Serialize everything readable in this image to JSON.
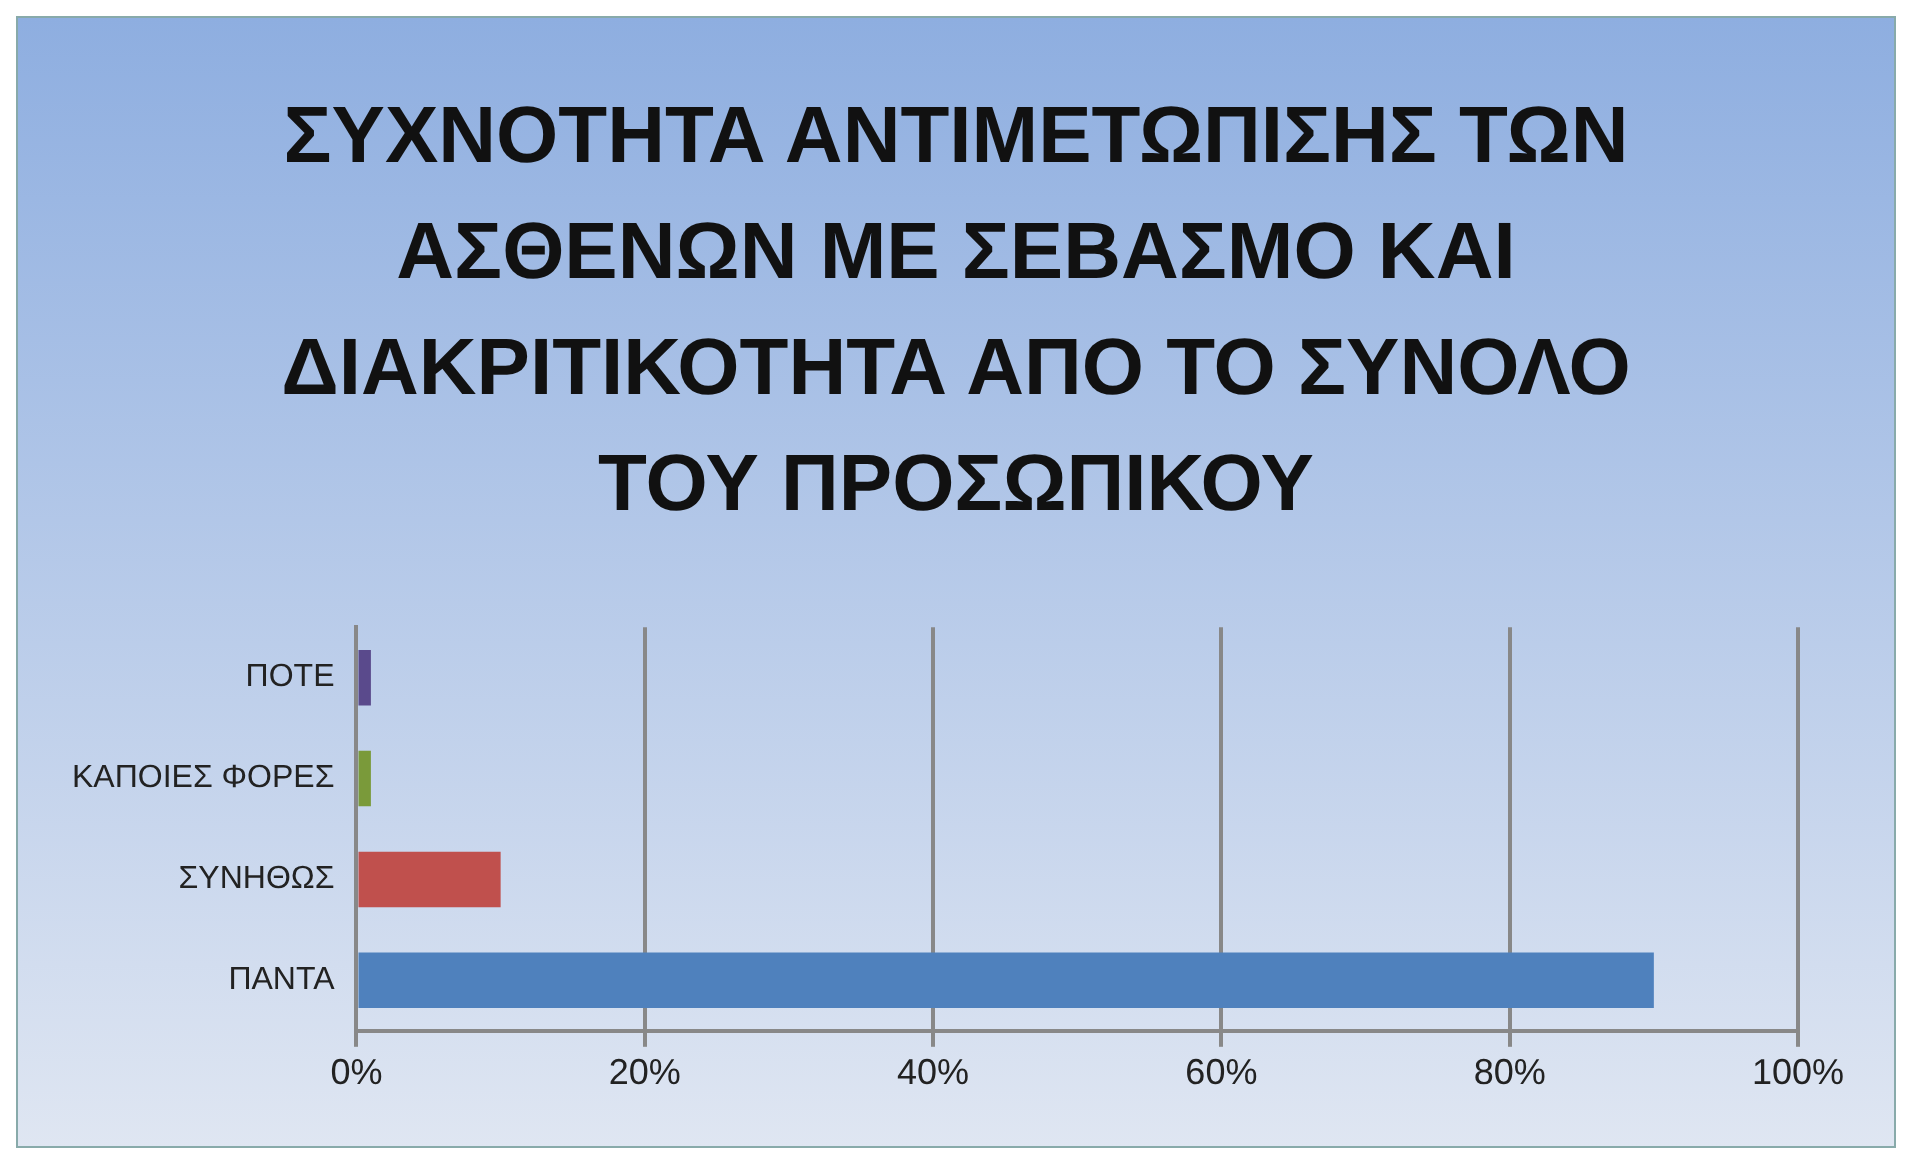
{
  "chart_data": {
    "type": "bar",
    "orientation": "horizontal",
    "title": "ΣΥΧΝΟΤΗΤΑ ΑΝΤΙΜΕΤΩΠΙΣΗΣ ΤΩΝ ΑΣΘΕΝΩΝ ΜΕ ΣΕΒΑΣΜΟ ΚΑΙ ΔΙΑΚΡΙΤΙΚΟΤΗΤΑ ΑΠΟ ΤΟ ΣΥΝΟΛΟ ΤΟΥ ΠΡΟΣΩΠΙΚΟΥ",
    "categories": [
      "ΠΟΤΕ",
      "ΚΑΠΟΙΕΣ ΦΟΡΕΣ",
      "ΣΥΝΗΘΩΣ",
      "ΠΑΝΤΑ"
    ],
    "values": [
      1,
      1,
      10,
      90
    ],
    "colors": [
      "#5a4a8c",
      "#7a9a3a",
      "#c0504d",
      "#4f81bd"
    ],
    "xlim": [
      0,
      100
    ],
    "xticks": [
      {
        "value": 0,
        "label": "0%"
      },
      {
        "value": 20,
        "label": "20%"
      },
      {
        "value": 40,
        "label": "40%"
      },
      {
        "value": 60,
        "label": "60%"
      },
      {
        "value": 80,
        "label": "80%"
      },
      {
        "value": 100,
        "label": "100%"
      }
    ],
    "grid": "x",
    "legend": false
  }
}
